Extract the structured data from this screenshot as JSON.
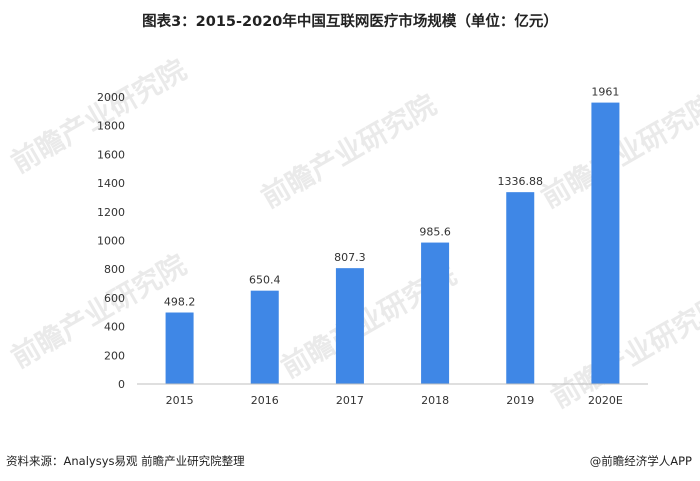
{
  "title": "图表3：2015-2020年中国互联网医疗市场规模（单位：亿元）",
  "source": "资料来源：Analysys易观 前瞻产业研究院整理",
  "brand": "@前瞻经济学人APP",
  "watermark": "前瞻产业研究院",
  "colors": {
    "bar": "#3f87e6",
    "axis": "#bfbfbf",
    "text": "#333333"
  },
  "chart_data": {
    "type": "bar",
    "title": "图表3：2015-2020年中国互联网医疗市场规模（单位：亿元）",
    "xlabel": "",
    "ylabel": "",
    "categories": [
      "2015",
      "2016",
      "2017",
      "2018",
      "2019",
      "2020E"
    ],
    "values": [
      498.2,
      650.4,
      807.3,
      985.6,
      1336.88,
      1961
    ],
    "value_labels": [
      "498.2",
      "650.4",
      "807.3",
      "985.6",
      "1336.88",
      "1961"
    ],
    "ylim": [
      0,
      2000
    ],
    "yticks": [
      "0",
      "200",
      "400",
      "600",
      "800",
      "1000",
      "1200",
      "1400",
      "1600",
      "1800",
      "2000"
    ],
    "grid": false,
    "legend": "none"
  }
}
